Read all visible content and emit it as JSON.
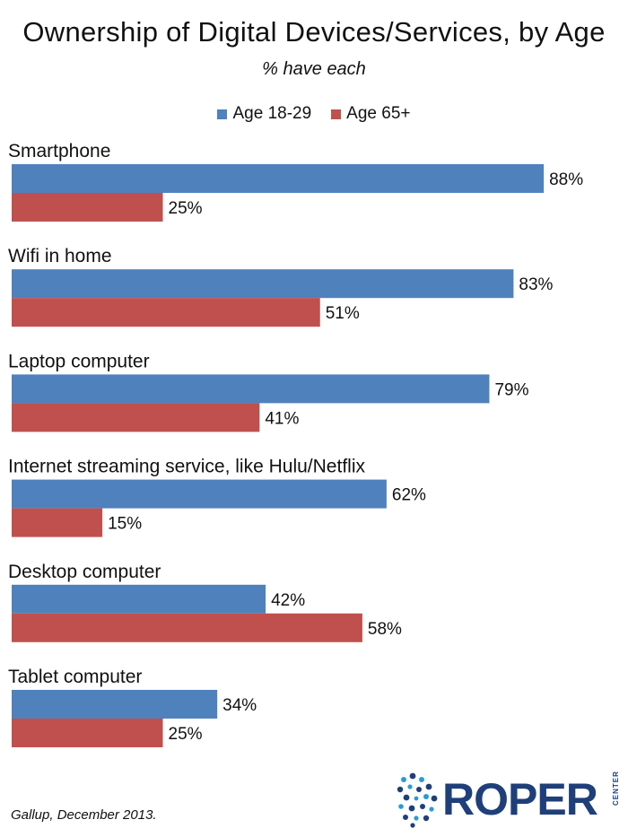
{
  "title": "Ownership of Digital Devices/Services, by Age",
  "subtitle": "% have each",
  "source": "Gallup, December 2013.",
  "logo": {
    "name": "ROPER",
    "sub": "CENTER"
  },
  "colors": {
    "series1": "#4f81bd",
    "series2": "#c0504d",
    "logo": "#1f3f7a"
  },
  "chart_data": {
    "type": "bar",
    "orientation": "horizontal",
    "categories": [
      "Smartphone",
      "Wifi in home",
      "Laptop computer",
      "Internet streaming service, like Hulu/Netflix",
      "Desktop computer",
      "Tablet computer"
    ],
    "series": [
      {
        "name": "Age 18-29",
        "values": [
          88,
          83,
          79,
          62,
          42,
          34
        ]
      },
      {
        "name": "Age 65+",
        "values": [
          25,
          51,
          41,
          15,
          58,
          25
        ]
      }
    ],
    "value_suffix": "%",
    "xlim": [
      0,
      100
    ],
    "legend": "top",
    "grid": false
  }
}
